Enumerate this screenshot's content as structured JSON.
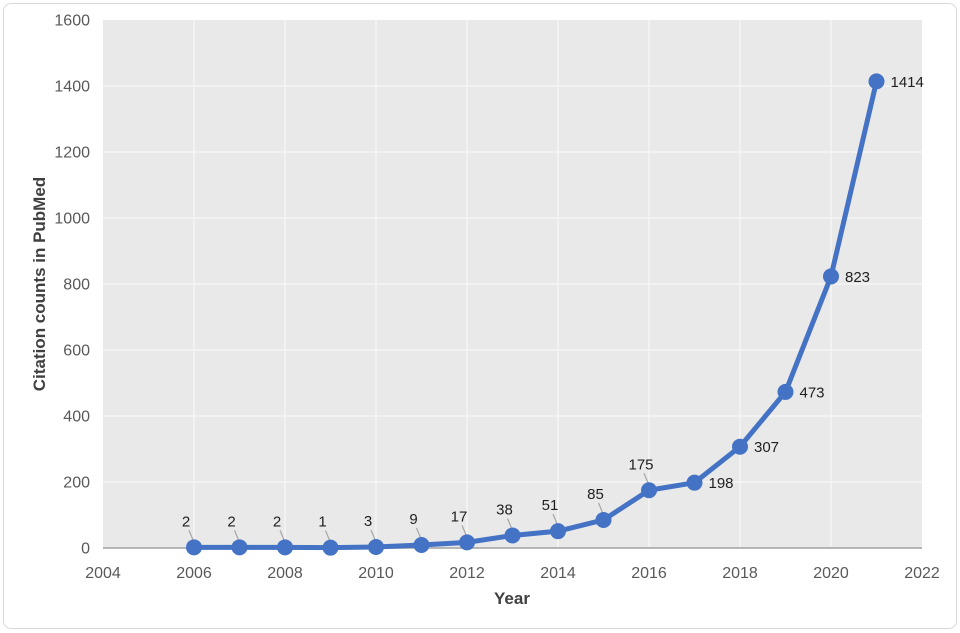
{
  "figure": {
    "background": "#ffffff",
    "border_color": "#d8d8d8"
  },
  "chart_data": {
    "type": "line",
    "xlabel": "Year",
    "ylabel": "Citation counts in PubMed",
    "x": [
      2006,
      2007,
      2008,
      2009,
      2010,
      2011,
      2012,
      2013,
      2014,
      2015,
      2016,
      2017,
      2018,
      2019,
      2020,
      2021
    ],
    "values": [
      2,
      2,
      2,
      1,
      3,
      9,
      17,
      38,
      51,
      85,
      175,
      198,
      307,
      473,
      823,
      1414
    ],
    "data_labels": [
      "2",
      "2",
      "2",
      "1",
      "3",
      "9",
      "17",
      "38",
      "51",
      "85",
      "175",
      "198",
      "307",
      "473",
      "823",
      "1414"
    ],
    "label_positions": [
      "above",
      "above",
      "above",
      "above",
      "above",
      "above",
      "above",
      "above",
      "above",
      "above",
      "above",
      "right",
      "right",
      "right",
      "right",
      "right"
    ],
    "xlim": [
      2004,
      2022
    ],
    "ylim": [
      0,
      1600
    ],
    "x_ticks": [
      2004,
      2006,
      2008,
      2010,
      2012,
      2014,
      2016,
      2018,
      2020,
      2022
    ],
    "y_ticks": [
      0,
      200,
      400,
      600,
      800,
      1000,
      1200,
      1400,
      1600
    ],
    "grid": true,
    "legend_position": "none",
    "colors": {
      "line": "#4472C4",
      "marker": "#4472C4",
      "plot_background": "#E9E9E9",
      "gridline": "#F5F5F5",
      "axis_line": "#ACACAC",
      "tick_label": "#595959",
      "axis_title": "#404040",
      "data_label": "#1F1F1F",
      "leader_line": "#A6A6A6"
    }
  }
}
